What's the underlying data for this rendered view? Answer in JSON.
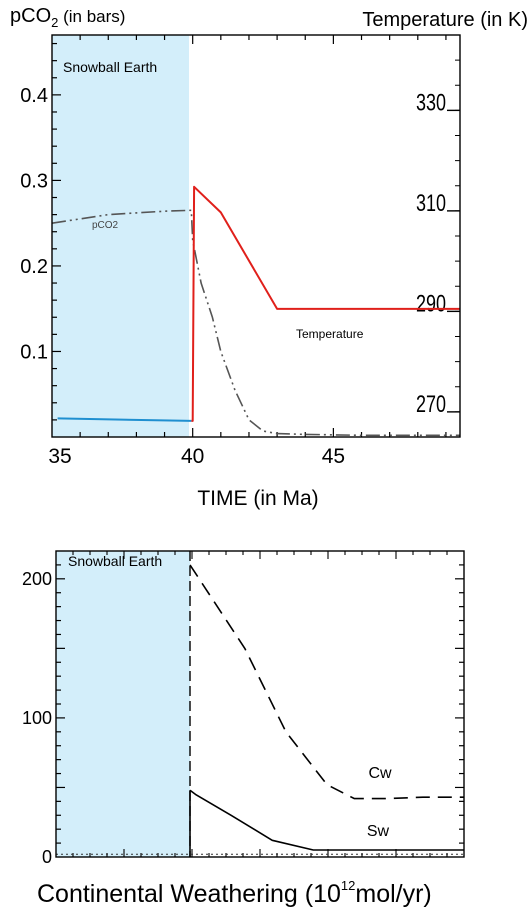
{
  "chart_data": [
    {
      "type": "line",
      "title": "",
      "y_left_label": "pCO",
      "y_left_label_sub": "2",
      "y_left_label_suffix": " (in bars)",
      "y_right_label": "Temperature (in K)",
      "xlabel": "TIME (in Ma)",
      "shaded_region_label": "Snowball Earth",
      "shaded_region": [
        35,
        40
      ],
      "xlim": [
        35,
        49.5
      ],
      "ylim_left": [
        0,
        0.47
      ],
      "ylim_right": [
        265,
        345
      ],
      "x_ticks": [
        35,
        40,
        45
      ],
      "x_tick_labels": [
        "35",
        "40",
        "45"
      ],
      "y_left_ticks": [
        0.1,
        0.2,
        0.3,
        0.4
      ],
      "y_left_tick_labels": [
        "0.1",
        "0.2",
        "0.3",
        "0.4"
      ],
      "y_right_ticks": [
        270,
        290,
        310,
        330
      ],
      "y_right_tick_labels": [
        "270",
        "290",
        "310",
        "330"
      ],
      "annotations": {
        "pco2": "pCO2",
        "temperature": "Temperature"
      },
      "colors": {
        "shade": "#d3eefa",
        "temperature": "#e0201b",
        "snowball_temp": "#1f8fd0",
        "pco2": "#555555"
      },
      "series": [
        {
          "name": "pCO2",
          "axis": "left",
          "style": "dashdot",
          "x": [
            35,
            36,
            37,
            38,
            39,
            39.95,
            40.0,
            40.3,
            40.7,
            41.0,
            41.5,
            42.0,
            42.5,
            43.0,
            44,
            46,
            48,
            49.5
          ],
          "y": [
            0.25,
            0.255,
            0.26,
            0.262,
            0.264,
            0.265,
            0.23,
            0.18,
            0.14,
            0.1,
            0.055,
            0.02,
            0.007,
            0.004,
            0.003,
            0.002,
            0.002,
            0.002
          ]
        },
        {
          "name": "Temperature",
          "axis": "right",
          "style": "solid",
          "x": [
            39.95,
            40.0,
            40.05,
            41.0,
            43.0,
            49.5
          ],
          "y": [
            268.2,
            268.2,
            314.8,
            309.7,
            290.5,
            290.5
          ]
        },
        {
          "name": "",
          "axis": "right",
          "style": "solid",
          "role": "snowball_temp",
          "x": [
            35.2,
            39.95
          ],
          "y": [
            268.7,
            268.2
          ]
        }
      ]
    },
    {
      "type": "line",
      "title": "",
      "xlabel_main": "Continental Weathering (10",
      "xlabel_sup": "12",
      "xlabel_tail": "mol/yr)",
      "shaded_region_label": "Snowball Earth",
      "ylim": [
        0,
        220
      ],
      "y_ticks": [
        0,
        100,
        200
      ],
      "y_tick_labels": [
        "0",
        "100",
        "200"
      ],
      "annotations": {
        "cw": "Cw",
        "sw": "Sw"
      },
      "series": [
        {
          "name": "Cw",
          "style": "dashed",
          "x": [
            0,
            0.06,
            0.2,
            0.35,
            0.5,
            0.6,
            0.72,
            0.85,
            1.0
          ],
          "y": [
            210,
            192,
            150,
            90,
            52,
            42,
            42,
            43,
            43
          ]
        },
        {
          "name": "Sw",
          "style": "solid",
          "x": [
            0,
            0.02,
            0.15,
            0.3,
            0.45,
            0.6,
            0.8,
            1.0
          ],
          "y": [
            48,
            45,
            30,
            12,
            5,
            5,
            5,
            5
          ]
        },
        {
          "name": "",
          "style": "dotted",
          "x": [
            -1.0,
            0,
            1.0
          ],
          "y": [
            2,
            2,
            2
          ]
        }
      ]
    }
  ]
}
